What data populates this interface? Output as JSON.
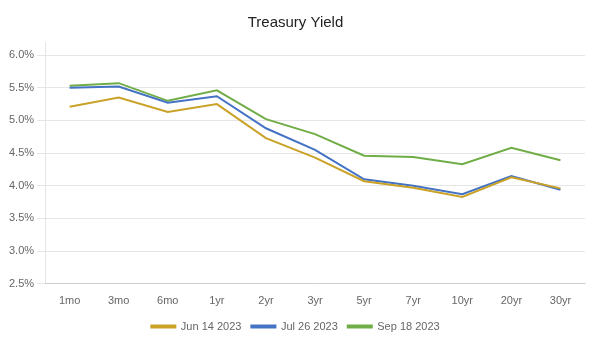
{
  "chart_data": {
    "type": "line",
    "title": "Treasury Yield",
    "categories": [
      "1mo",
      "3mo",
      "6mo",
      "1yr",
      "2yr",
      "3yr",
      "5yr",
      "7yr",
      "10yr",
      "20yr",
      "30yr"
    ],
    "series": [
      {
        "name": "Jun 14 2023",
        "color": "#C9A227",
        "values": [
          5.21,
          5.35,
          5.13,
          5.25,
          4.73,
          4.43,
          4.07,
          3.97,
          3.83,
          4.13,
          3.96
        ]
      },
      {
        "name": "Jul 26 2023",
        "color": "#4472C4",
        "values": [
          5.5,
          5.52,
          5.27,
          5.37,
          4.88,
          4.55,
          4.1,
          4.0,
          3.87,
          4.15,
          3.94
        ]
      },
      {
        "name": "Sep 18 2023",
        "color": "#70AD47",
        "values": [
          5.53,
          5.57,
          5.3,
          5.46,
          5.02,
          4.79,
          4.46,
          4.44,
          4.33,
          4.58,
          4.39
        ]
      }
    ],
    "ylim": [
      2.5,
      6.2
    ],
    "yticks": [
      {
        "value": 2.5,
        "label": "2.5%"
      },
      {
        "value": 3.0,
        "label": "3.0%"
      },
      {
        "value": 3.5,
        "label": "3.5%"
      },
      {
        "value": 4.0,
        "label": "4.0%"
      },
      {
        "value": 4.5,
        "label": "4.5%"
      },
      {
        "value": 5.0,
        "label": "5.0%"
      },
      {
        "value": 5.5,
        "label": "5.5%"
      },
      {
        "value": 6.0,
        "label": "6.0%"
      }
    ],
    "grid": "y",
    "legend": "bottom"
  }
}
